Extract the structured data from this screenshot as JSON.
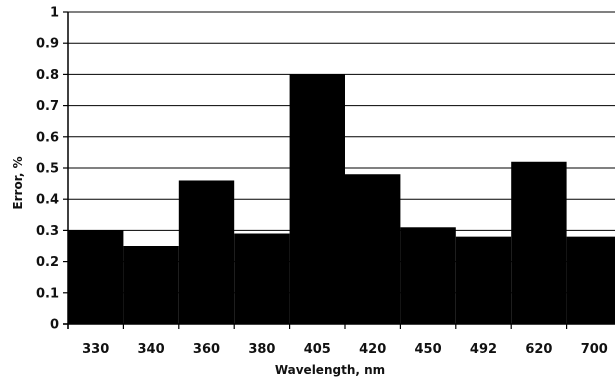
{
  "chart_data": {
    "type": "bar",
    "title": "",
    "xlabel": "Wavelength, nm",
    "ylabel": "Error, %",
    "categories": [
      "330",
      "340",
      "360",
      "380",
      "405",
      "420",
      "450",
      "492",
      "620",
      "700"
    ],
    "values": [
      0.3,
      0.25,
      0.46,
      0.29,
      0.8,
      0.48,
      0.31,
      0.28,
      0.52,
      0.28
    ],
    "ylim": [
      0,
      1
    ],
    "yticks": [
      "0",
      "0.1",
      "0.2",
      "0.3",
      "0.4",
      "0.5",
      "0.6",
      "0.7",
      "0.8",
      "0.9",
      "1"
    ],
    "grid": true,
    "legend": "none",
    "colors": {
      "bar": "#000000",
      "grid": "#000000",
      "background": "#ffffff"
    }
  }
}
